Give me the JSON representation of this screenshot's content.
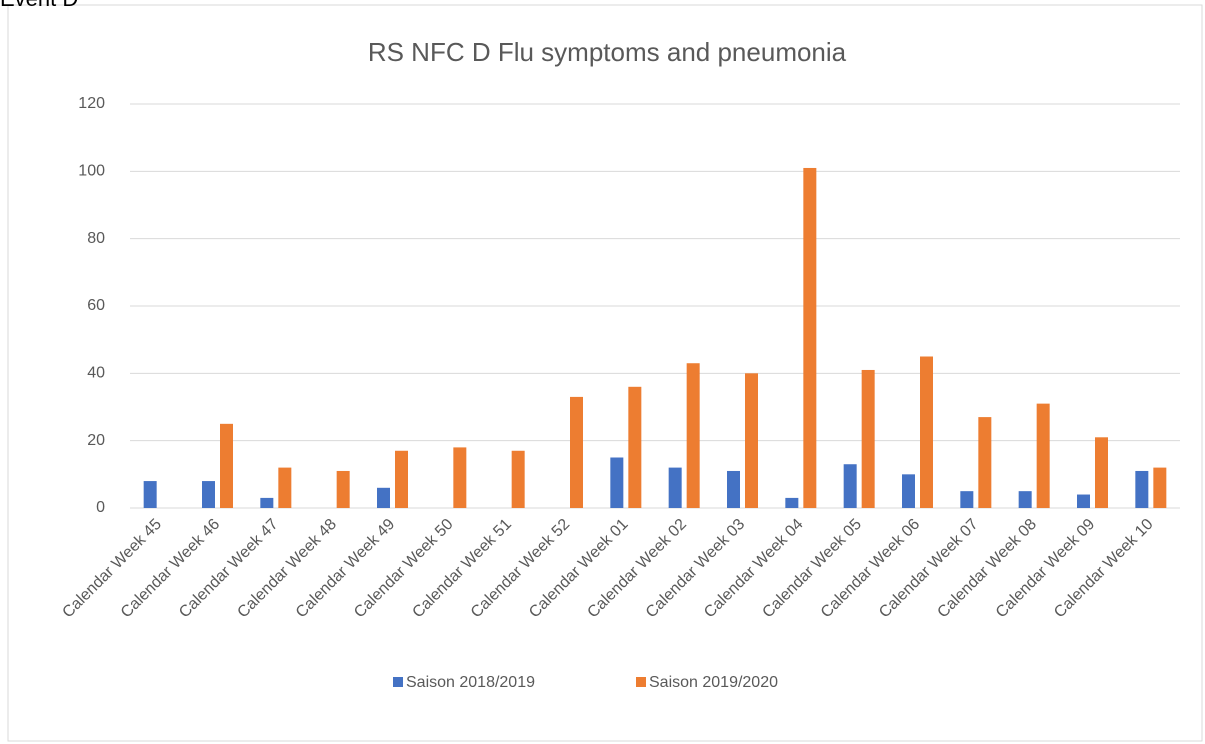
{
  "caption": "Event D",
  "chart_data": {
    "type": "bar",
    "title": "RS NFC D Flu symptoms and pneumonia",
    "categories": [
      "Calendar Week 45",
      "Calendar Week 46",
      "Calendar Week 47",
      "Calendar Week 48",
      "Calendar Week 49",
      "Calendar Week 50",
      "Calendar Week 51",
      "Calendar Week 52",
      "Calendar Week 01",
      "Calendar Week 02",
      "Calendar Week 03",
      "Calendar Week 04",
      "Calendar Week 05",
      "Calendar Week 06",
      "Calendar Week 07",
      "Calendar Week 08",
      "Calendar Week 09",
      "Calendar Week 10"
    ],
    "series": [
      {
        "name": "Saison 2018/2019",
        "color": "#4472c4",
        "values": [
          8,
          8,
          3,
          null,
          6,
          null,
          null,
          null,
          15,
          12,
          11,
          3,
          13,
          10,
          5,
          5,
          4,
          11
        ]
      },
      {
        "name": "Saison 2019/2020",
        "color": "#ed7d31",
        "values": [
          null,
          25,
          12,
          11,
          17,
          18,
          17,
          33,
          36,
          43,
          40,
          101,
          41,
          45,
          27,
          31,
          21,
          12
        ]
      }
    ],
    "ylim": [
      0,
      120
    ],
    "yticks": [
      0,
      20,
      40,
      60,
      80,
      100,
      120
    ],
    "grid": true,
    "legend": "bottom"
  }
}
